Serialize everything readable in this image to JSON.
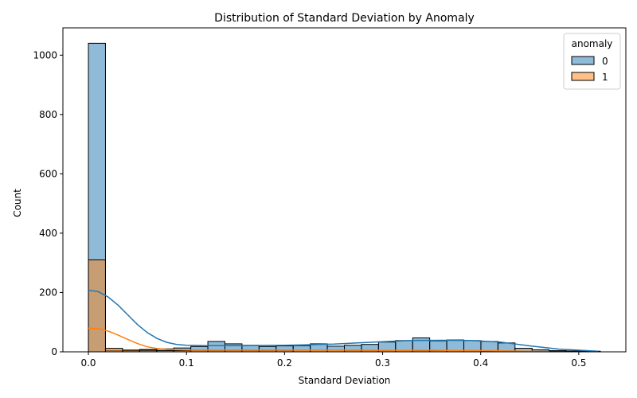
{
  "chart_data": {
    "type": "bar",
    "title": "Distribution of Standard Deviation by Anomaly",
    "xlabel": "Standard Deviation",
    "ylabel": "Count",
    "xlim": [
      -0.026,
      0.548
    ],
    "ylim": [
      0,
      1092
    ],
    "xticks": [
      0.0,
      0.1,
      0.2,
      0.3,
      0.4,
      0.5
    ],
    "xtick_labels": [
      "0.0",
      "0.1",
      "0.2",
      "0.3",
      "0.4",
      "0.5"
    ],
    "yticks": [
      0,
      200,
      400,
      600,
      800,
      1000
    ],
    "ytick_labels": [
      "0",
      "200",
      "400",
      "600",
      "800",
      "1000"
    ],
    "grid": false,
    "legend": {
      "title": "anomaly",
      "placement": "top-right"
    },
    "bin_edges": [
      0.0,
      0.0174,
      0.0348,
      0.0522,
      0.0696,
      0.087,
      0.1044,
      0.1218,
      0.1392,
      0.1566,
      0.174,
      0.1914,
      0.2088,
      0.2262,
      0.2436,
      0.261,
      0.2784,
      0.2958,
      0.3132,
      0.3306,
      0.348,
      0.3654,
      0.3828,
      0.4002,
      0.4176,
      0.435,
      0.4524,
      0.4698,
      0.4872,
      0.5046,
      0.522
    ],
    "series": [
      {
        "name": "0",
        "color": "#1f77b4",
        "counts": [
          1040,
          5,
          4,
          8,
          10,
          13,
          18,
          35,
          27,
          22,
          18,
          20,
          21,
          27,
          19,
          22,
          25,
          33,
          38,
          47,
          37,
          40,
          38,
          35,
          30,
          12,
          7,
          4,
          3,
          2
        ],
        "kde_x": [
          0.0,
          0.01,
          0.02,
          0.03,
          0.04,
          0.05,
          0.06,
          0.07,
          0.08,
          0.09,
          0.1,
          0.12,
          0.15,
          0.2,
          0.25,
          0.3,
          0.33,
          0.36,
          0.39,
          0.42,
          0.45,
          0.48,
          0.52
        ],
        "kde_y": [
          207,
          203,
          185,
          158,
          125,
          92,
          65,
          45,
          32,
          25,
          22,
          21,
          21,
          22,
          26,
          34,
          38,
          39,
          38,
          33,
          20,
          9,
          2
        ]
      },
      {
        "name": "1",
        "color": "#ff7f0e",
        "counts": [
          310,
          12,
          6,
          5,
          4,
          4,
          5,
          5,
          5,
          5,
          5,
          5,
          6,
          6,
          6,
          5,
          5,
          5,
          5,
          4,
          4,
          4,
          4,
          3,
          3,
          2,
          2,
          1,
          1,
          0
        ],
        "kde_x": [
          0.0,
          0.01,
          0.02,
          0.03,
          0.04,
          0.05,
          0.06,
          0.07,
          0.08,
          0.09,
          0.1,
          0.12,
          0.15,
          0.2,
          0.25,
          0.3,
          0.35,
          0.4,
          0.45,
          0.47
        ],
        "kde_y": [
          80,
          78,
          70,
          57,
          42,
          28,
          17,
          11,
          8,
          7,
          6,
          6,
          6,
          6,
          6,
          5,
          5,
          4,
          2,
          1
        ]
      }
    ]
  }
}
